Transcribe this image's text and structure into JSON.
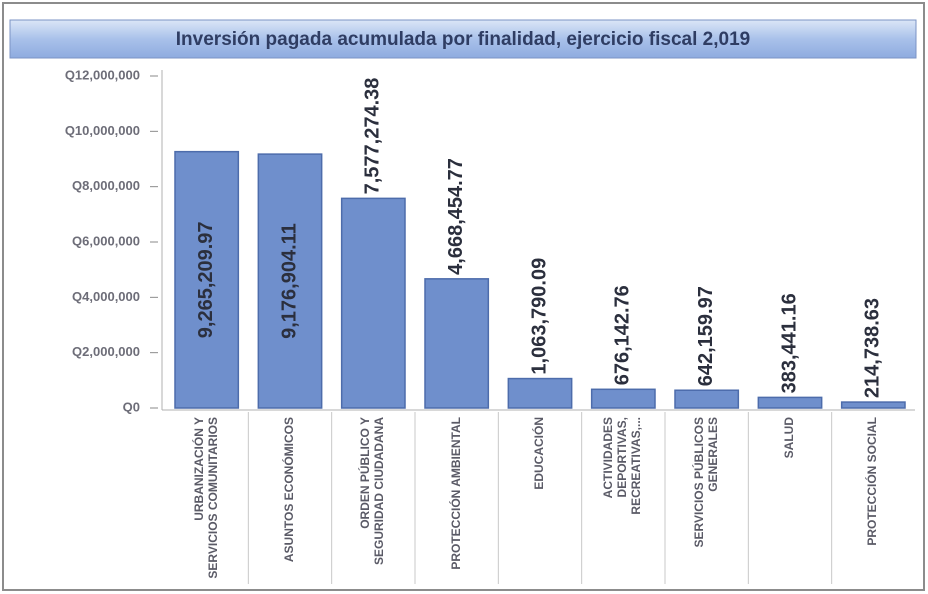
{
  "chart_data": {
    "type": "bar",
    "title": "Inversión pagada acumulada por finalidad, ejercicio fiscal 2,019",
    "categories": [
      "URBANIZACIÓN Y SERVICIOS COMUNITARIOS",
      "ASUNTOS ECONÓMICOS",
      "ORDEN PÚBLICO Y SEGURIDAD CIUDADANA",
      "PROTECCIÓN AMBIENTAL",
      "EDUCACIÓN",
      "ACTIVIDADES DEPORTIVAS, RECREATIVAS,...",
      "SERVICIOS PÚBLICOS GENERALES",
      "SALUD",
      "PROTECCIÓN SOCIAL"
    ],
    "values": [
      9265209.97,
      9176904.11,
      7577274.38,
      4668454.77,
      1063790.09,
      676142.76,
      642159.97,
      383441.16,
      214738.63
    ],
    "value_labels": [
      "9,265,209.97",
      "9,176,904.11",
      "7,577,274.38",
      "4,668,454.77",
      "1,063,790.09",
      "676,142.76",
      "642,159.97",
      "383,441.16",
      "214,738.63"
    ],
    "color": "#6f8fcc",
    "ylim": [
      0,
      12000000
    ],
    "yticks": [
      {
        "value": 0,
        "label": "Q0"
      },
      {
        "value": 2000000,
        "label": "Q2,000,000"
      },
      {
        "value": 4000000,
        "label": "Q4,000,000"
      },
      {
        "value": 6000000,
        "label": "Q6,000,000"
      },
      {
        "value": 8000000,
        "label": "Q8,000,000"
      },
      {
        "value": 10000000,
        "label": "Q10,000,000"
      },
      {
        "value": 12000000,
        "label": "Q12,000,000"
      }
    ],
    "grid": false
  }
}
